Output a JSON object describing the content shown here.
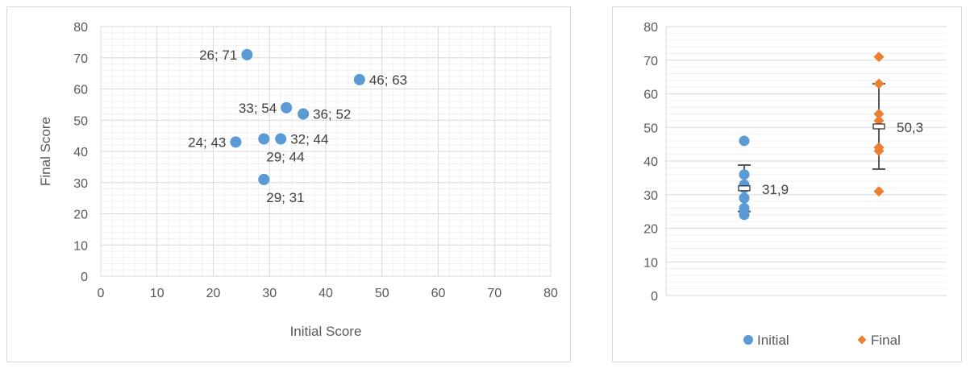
{
  "chart_data": [
    {
      "type": "scatter",
      "xlabel": "Initial Score",
      "ylabel": "Final Score",
      "xlim": [
        0,
        80
      ],
      "ylim": [
        0,
        80
      ],
      "x_ticks": [
        "0",
        "10",
        "20",
        "30",
        "40",
        "50",
        "60",
        "70",
        "80"
      ],
      "y_ticks": [
        "0",
        "10",
        "20",
        "30",
        "40",
        "50",
        "60",
        "70",
        "80"
      ],
      "grid": "major and minor",
      "marker_color": "#5b9bd5",
      "points": [
        {
          "x": 26,
          "y": 71,
          "label": "26; 71",
          "label_side": "left"
        },
        {
          "x": 46,
          "y": 63,
          "label": "46; 63",
          "label_side": "right"
        },
        {
          "x": 33,
          "y": 54,
          "label": "33; 54",
          "label_side": "left"
        },
        {
          "x": 36,
          "y": 52,
          "label": "36; 52",
          "label_side": "right"
        },
        {
          "x": 24,
          "y": 43,
          "label": "24; 43",
          "label_side": "left"
        },
        {
          "x": 29,
          "y": 44,
          "label": "29; 44",
          "label_side": "below"
        },
        {
          "x": 32,
          "y": 44,
          "label": "32; 44",
          "label_side": "right"
        },
        {
          "x": 29,
          "y": 31,
          "label": "29; 31",
          "label_side": "below"
        }
      ]
    },
    {
      "type": "scatter",
      "ylim": [
        0,
        80
      ],
      "y_ticks": [
        "0",
        "10",
        "20",
        "30",
        "40",
        "50",
        "60",
        "70",
        "80"
      ],
      "grid": "major and minor horizontal",
      "legend_position": "bottom",
      "series": [
        {
          "name": "Initial",
          "marker": "circle",
          "color": "#5b9bd5",
          "values": [
            26,
            46,
            33,
            36,
            24,
            29,
            32,
            29
          ],
          "mean": 31.9,
          "mean_label": "31,9",
          "error_range": [
            25.0,
            38.8
          ]
        },
        {
          "name": "Final",
          "marker": "diamond",
          "color": "#ed7d31",
          "values": [
            71,
            63,
            54,
            52,
            43,
            44,
            44,
            31
          ],
          "mean": 50.3,
          "mean_label": "50,3",
          "error_range": [
            37.6,
            63.0
          ]
        }
      ]
    }
  ]
}
